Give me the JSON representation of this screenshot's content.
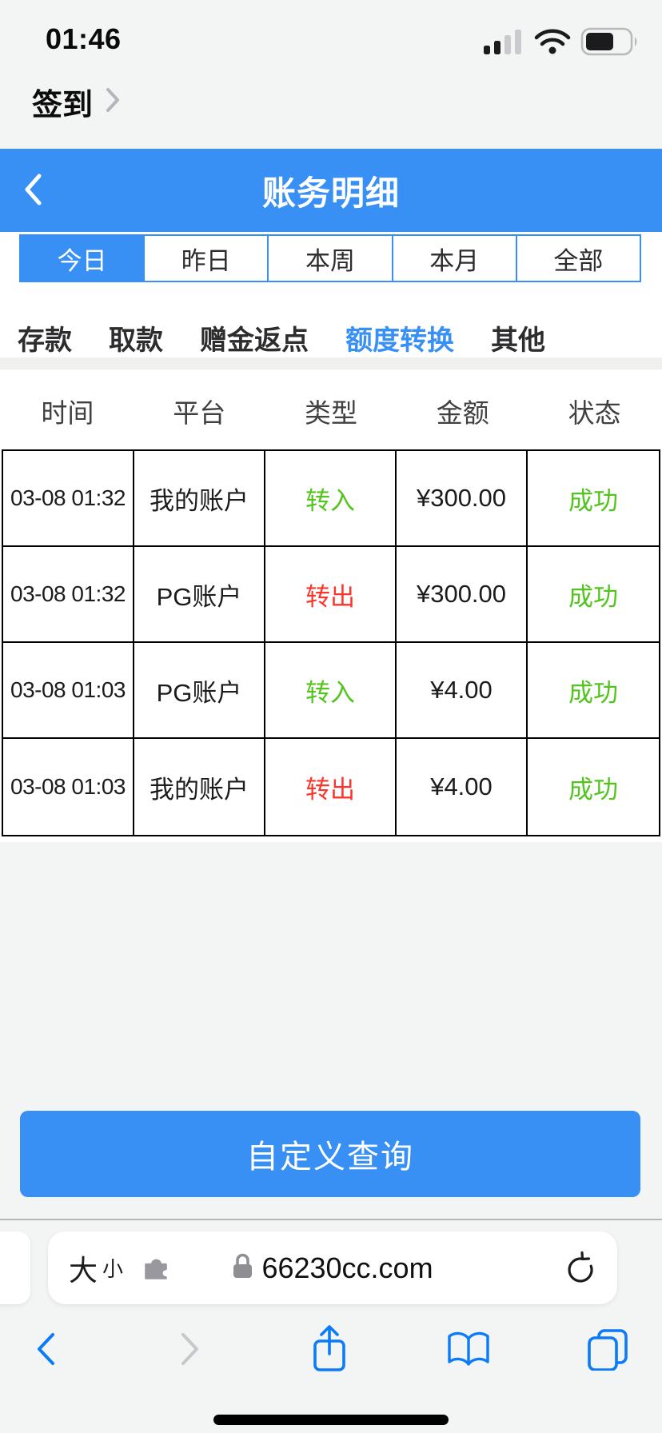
{
  "status_bar": {
    "time": "01:46",
    "icons": [
      "cellular-signal-icon",
      "wifi-icon",
      "battery-icon"
    ]
  },
  "promo_bar": {
    "label": "签到"
  },
  "header": {
    "title": "账务明细"
  },
  "date_tabs": [
    {
      "label": "今日",
      "active": true
    },
    {
      "label": "昨日",
      "active": false
    },
    {
      "label": "本周",
      "active": false
    },
    {
      "label": "本月",
      "active": false
    },
    {
      "label": "全部",
      "active": false
    }
  ],
  "category_tabs": [
    {
      "label": "存款",
      "active": false
    },
    {
      "label": "取款",
      "active": false
    },
    {
      "label": "赠金返点",
      "active": false
    },
    {
      "label": "额度转换",
      "active": true
    },
    {
      "label": "其他",
      "active": false
    }
  ],
  "table": {
    "headers": [
      "时间",
      "平台",
      "类型",
      "金额",
      "状态"
    ],
    "rows": [
      {
        "time": "03-08 01:32",
        "platform": "我的账户",
        "type": "转入",
        "type_color": "green",
        "amount": "¥300.00",
        "status": "成功",
        "status_color": "green"
      },
      {
        "time": "03-08 01:32",
        "platform": "PG账户",
        "type": "转出",
        "type_color": "red",
        "amount": "¥300.00",
        "status": "成功",
        "status_color": "green"
      },
      {
        "time": "03-08 01:03",
        "platform": "PG账户",
        "type": "转入",
        "type_color": "green",
        "amount": "¥4.00",
        "status": "成功",
        "status_color": "green"
      },
      {
        "time": "03-08 01:03",
        "platform": "我的账户",
        "type": "转出",
        "type_color": "red",
        "amount": "¥4.00",
        "status": "成功",
        "status_color": "green"
      }
    ]
  },
  "query_button": {
    "label": "自定义查询"
  },
  "browser_bar": {
    "text_size_big": "大",
    "text_size_small": "小",
    "domain": "66230cc.com",
    "icons": {
      "extensions": "puzzle-icon",
      "security": "lock-icon",
      "reload": "reload-icon"
    }
  },
  "toolbar": {
    "icons": [
      "back-chevron-icon",
      "forward-chevron-icon",
      "share-icon",
      "bookmarks-icon",
      "tabs-icon"
    ]
  },
  "colors": {
    "accent_blue": "#3990f4",
    "link_blue": "#0b7bf7",
    "success_green": "#53c41d",
    "danger_red": "#fa362c",
    "table_border": "#000000"
  }
}
